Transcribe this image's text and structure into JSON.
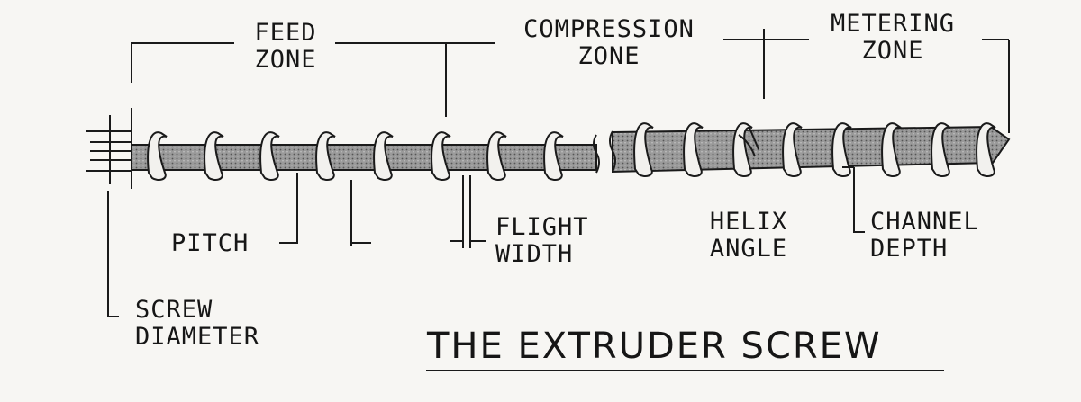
{
  "diagram": {
    "title": "THE EXTRUDER SCREW",
    "zones": {
      "feed": [
        "FEED",
        "ZONE"
      ],
      "compression": [
        "COMPRESSION",
        "ZONE"
      ],
      "metering": [
        "METERING",
        "ZONE"
      ]
    },
    "parts": {
      "pitch": "PITCH",
      "flight_width": [
        "FLIGHT",
        "WIDTH"
      ],
      "helix_angle": [
        "HELIX",
        "ANGLE"
      ],
      "channel_depth": [
        "CHANNEL",
        "DEPTH"
      ],
      "screw_diameter": [
        "SCREW",
        "DIAMETER"
      ]
    }
  }
}
